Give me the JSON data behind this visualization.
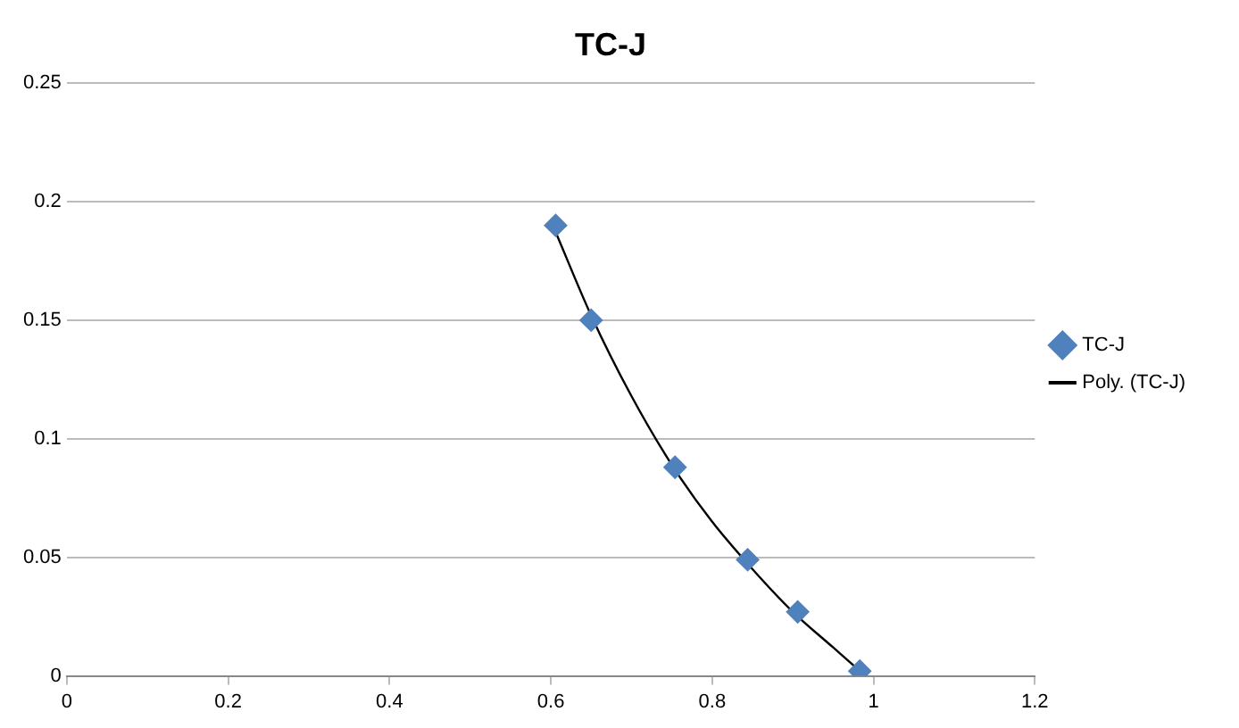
{
  "chart_data": {
    "type": "scatter",
    "title": "TC-J",
    "xlim": [
      0,
      1.2
    ],
    "xticks": [
      0,
      0.2,
      0.4,
      0.6,
      0.8,
      1,
      1.2
    ],
    "ylim": [
      0,
      0.25
    ],
    "yticks": [
      0,
      0.05,
      0.1,
      0.15,
      0.2,
      0.25
    ],
    "grid": "y",
    "legend": "right",
    "marker": "diamond",
    "series": [
      {
        "name": "TC-J",
        "color": "#4f81bd",
        "x": [
          0.606,
          0.65,
          0.754,
          0.844,
          0.906,
          0.983
        ],
        "values": [
          0.19,
          0.15,
          0.088,
          0.049,
          0.027,
          0.002
        ]
      },
      {
        "name": "Poly. (TC-J)",
        "type": "line",
        "color": "#000000",
        "marker": "none",
        "x": [
          0.605,
          0.65,
          0.7,
          0.75,
          0.8,
          0.85,
          0.9,
          0.95,
          0.98
        ],
        "values": [
          0.188,
          0.152,
          0.118,
          0.089,
          0.065,
          0.045,
          0.027,
          0.012,
          0.003
        ]
      }
    ]
  }
}
